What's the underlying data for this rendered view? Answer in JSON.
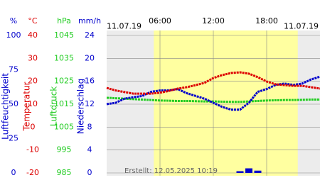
{
  "chart_data": {
    "type": "line",
    "date_left": "11.07.19",
    "date_right": "11.07.19",
    "created": "Erstellt: 12.05.2025 10:19",
    "xlim": [
      0,
      24
    ],
    "xticks": [
      {
        "value": 6,
        "label": "06:00"
      },
      {
        "value": 12,
        "label": "12:00"
      },
      {
        "value": 18,
        "label": "18:00"
      }
    ],
    "daylight": [
      5.3,
      21.5
    ],
    "x": [
      0,
      1,
      2,
      3,
      4,
      5,
      6,
      7,
      8,
      9,
      10,
      11,
      12,
      13,
      14,
      15,
      16,
      17,
      18,
      19,
      20,
      21,
      22,
      23,
      24
    ],
    "grid": true,
    "series": [
      {
        "name": "Luftfeuchtigkeit",
        "unit": "%",
        "color": "#0000cc",
        "kind": "line",
        "ylim": [
          0,
          100
        ],
        "yticks": [
          0,
          25,
          50,
          75,
          100
        ],
        "values": [
          50,
          51,
          54,
          55,
          56,
          59,
          60,
          60,
          61,
          58,
          56,
          54,
          51,
          48,
          46,
          46,
          51,
          59,
          61,
          64,
          65,
          64,
          65,
          68,
          70
        ]
      },
      {
        "name": "Temperatur",
        "unit": "°C",
        "color": "#dd0000",
        "kind": "line",
        "ylim": [
          -20,
          40
        ],
        "yticks": [
          -20,
          -10,
          0,
          10,
          20,
          30,
          40
        ],
        "values": [
          17.1,
          16,
          15.3,
          14.6,
          14.6,
          14.6,
          15,
          15.8,
          16.8,
          17.4,
          18.3,
          19.3,
          21.4,
          22.7,
          23.6,
          23.9,
          23.3,
          21.8,
          19.9,
          18.7,
          18.3,
          18,
          18,
          17.4,
          16.8
        ]
      },
      {
        "name": "Luftdruck",
        "unit": "hPa",
        "color": "#22cc22",
        "kind": "line",
        "ylim": [
          985,
          1045
        ],
        "yticks": [
          985,
          995,
          1005,
          1015,
          1025,
          1035,
          1045
        ],
        "values": [
          1017.8,
          1017.6,
          1017.4,
          1017.2,
          1017,
          1016.8,
          1016.6,
          1016.5,
          1016.4,
          1016.4,
          1016.3,
          1016.2,
          1016.2,
          1016.1,
          1016,
          1016,
          1016.2,
          1016.4,
          1016.6,
          1016.7,
          1016.8,
          1016.8,
          1016.9,
          1017,
          1017
        ]
      },
      {
        "name": "Niederschlag",
        "unit": "mm/h",
        "color": "#0000cc",
        "kind": "bar",
        "ylim": [
          0,
          24
        ],
        "yticks": [
          0,
          4,
          8,
          12,
          16,
          20,
          24
        ],
        "values": [
          0,
          0,
          0,
          0,
          0,
          0,
          0,
          0,
          0,
          0,
          0,
          0,
          0,
          0,
          0,
          0.3,
          0.8,
          0.4,
          0,
          0,
          0,
          0,
          0,
          0,
          0
        ]
      }
    ]
  }
}
